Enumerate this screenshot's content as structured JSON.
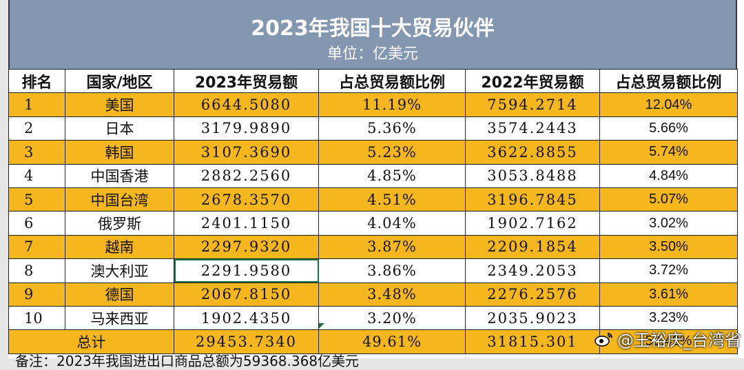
{
  "title": "2023年我国十大贸易伙伴",
  "subtitle": "单位：亿美元",
  "headers": [
    "排名",
    "国家/地区",
    "2023年贸易额",
    "占总贸易额比例",
    "2022年贸易额",
    "占总贸易额比例"
  ],
  "rows": [
    [
      "1",
      "美国",
      "6644.5080",
      "11.19%",
      "7594.2714",
      "12.04%"
    ],
    [
      "2",
      "日本",
      "3179.9890",
      "5.36%",
      "3574.2443",
      "5.66%"
    ],
    [
      "3",
      "韩国",
      "3107.3690",
      "5.23%",
      "3622.8855",
      "5.74%"
    ],
    [
      "4",
      "中国香港",
      "2882.2560",
      "4.85%",
      "3053.8488",
      "4.84%"
    ],
    [
      "5",
      "中国台湾",
      "2678.3570",
      "4.51%",
      "3196.7845",
      "5.07%"
    ],
    [
      "6",
      "俄罗斯",
      "2401.1150",
      "4.04%",
      "1902.7162",
      "3.02%"
    ],
    [
      "7",
      "越南",
      "2297.9320",
      "3.87%",
      "2209.1854",
      "3.50%"
    ],
    [
      "8",
      "澳大利亚",
      "2291.9580",
      "3.86%",
      "2349.2053",
      "3.72%"
    ],
    [
      "9",
      "德国",
      "2067.8150",
      "3.48%",
      "2276.2576",
      "3.61%"
    ],
    [
      "10",
      "马来西亚",
      "1902.4350",
      "3.20%",
      "2035.9023",
      "3.23%"
    ]
  ],
  "total": {
    "label": "总计",
    "trade_2023": "29453.7340",
    "pct_2023": "49.61%",
    "trade_2022": "31815.301",
    "pct_2022": "50.42%"
  },
  "note": "备注：2023年我国进出口商品总额为59368.368亿美元",
  "watermark": "@王裕庆_台湾省",
  "colors": {
    "title_bg": "#8497b0",
    "highlight_row": "#f6b61d",
    "selection": "#1e7145"
  }
}
